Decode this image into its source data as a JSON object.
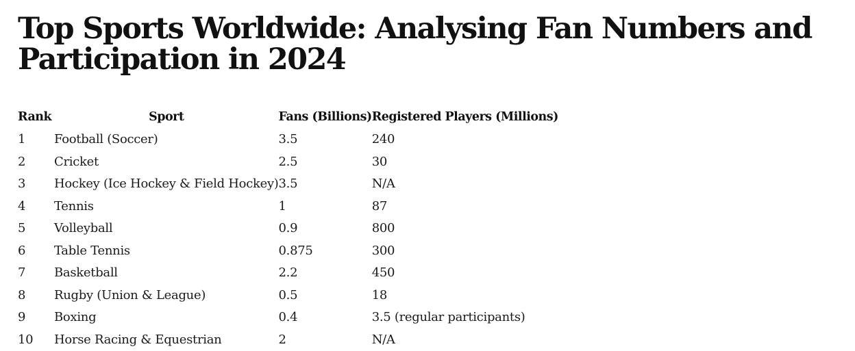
{
  "title": "Top Sports Worldwide: Analysing Fan Numbers and Participation in 2024",
  "table": {
    "headers": [
      "Rank",
      "Sport",
      "Fans (Billions)",
      "Registered Players (Millions)"
    ],
    "rows": [
      [
        "1",
        "Football (Soccer)",
        "3.5",
        "240"
      ],
      [
        "2",
        "Cricket",
        "2.5",
        "30"
      ],
      [
        "3",
        "Hockey (Ice Hockey & Field Hockey)",
        "3.5",
        "N/A"
      ],
      [
        "4",
        "Tennis",
        "1",
        "87"
      ],
      [
        "5",
        "Volleyball",
        "0.9",
        "800"
      ],
      [
        "6",
        "Table Tennis",
        "0.875",
        "300"
      ],
      [
        "7",
        "Basketball",
        "2.2",
        "450"
      ],
      [
        "8",
        "Rugby (Union & League)",
        "0.5",
        "18"
      ],
      [
        "9",
        "Boxing",
        "0.4",
        "3.5 (regular participants)"
      ],
      [
        "10",
        "Horse Racing & Equestrian",
        "2",
        "N/A"
      ]
    ]
  }
}
